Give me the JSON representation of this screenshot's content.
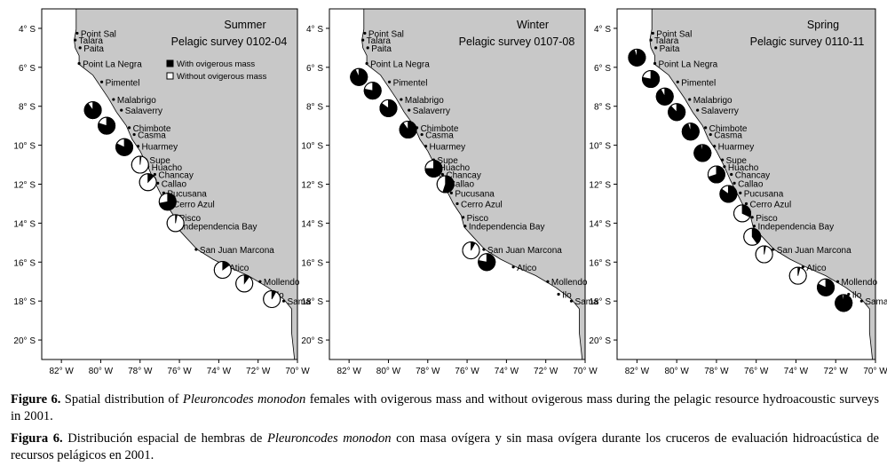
{
  "colors": {
    "land": "#c8c8c8",
    "sea": "#ffffff",
    "with_mass": "#000000",
    "without_mass": "#ffffff"
  },
  "legend": {
    "with_label": "With ovigerous mass",
    "without_label": "Without ovigerous mass"
  },
  "axes": {
    "lat_ticks": [
      "4° S",
      "6° S",
      "8° S",
      "10° S",
      "12° S",
      "14° S",
      "16° S",
      "18° S",
      "20° S"
    ],
    "lon_ticks": [
      "82° W",
      "80° W",
      "78° W",
      "76° W",
      "74° W",
      "72° W",
      "70° W"
    ]
  },
  "places": [
    "Point Sal",
    "Talara",
    "Paita",
    "Point La Negra",
    "Pimentel",
    "Malabrigo",
    "Salaverry",
    "Chimbote",
    "Casma",
    "Huarmey",
    "Supe",
    "Huacho",
    "Chancay",
    "Callao",
    "Pucusana",
    "Cerro Azul",
    "Pisco",
    "Independencia Bay",
    "San Juan Marcona",
    "Atico",
    "Mollendo",
    "Ilo",
    "Sama"
  ],
  "panels": [
    {
      "season": "Summer",
      "survey": "Pelagic survey 0102-04",
      "show_legend": true,
      "pies": [
        {
          "lon": -80.4,
          "lat": 8.2,
          "with_mass": 0.9
        },
        {
          "lon": -79.7,
          "lat": 9.0,
          "with_mass": 0.8
        },
        {
          "lon": -78.8,
          "lat": 10.1,
          "with_mass": 0.82
        },
        {
          "lon": -78.0,
          "lat": 11.0,
          "with_mass": 0.02
        },
        {
          "lon": -77.6,
          "lat": 11.9,
          "with_mass": 0.12
        },
        {
          "lon": -76.6,
          "lat": 12.9,
          "with_mass": 0.72
        },
        {
          "lon": -76.2,
          "lat": 14.0,
          "with_mass": 0.03
        },
        {
          "lon": -73.8,
          "lat": 16.4,
          "with_mass": 0.15
        },
        {
          "lon": -72.7,
          "lat": 17.1,
          "with_mass": 0.1
        },
        {
          "lon": -71.3,
          "lat": 17.9,
          "with_mass": 0.08
        }
      ]
    },
    {
      "season": "Winter",
      "survey": "Pelagic survey 0107-08",
      "show_legend": false,
      "pies": [
        {
          "lon": -81.5,
          "lat": 6.5,
          "with_mass": 0.93
        },
        {
          "lon": -80.8,
          "lat": 7.2,
          "with_mass": 0.78
        },
        {
          "lon": -80.0,
          "lat": 8.1,
          "with_mass": 0.85
        },
        {
          "lon": -79.0,
          "lat": 9.2,
          "with_mass": 0.9
        },
        {
          "lon": -77.7,
          "lat": 11.2,
          "with_mass": 0.75
        },
        {
          "lon": -77.1,
          "lat": 12.0,
          "with_mass": 0.55
        },
        {
          "lon": -75.8,
          "lat": 15.4,
          "with_mass": 0.08
        },
        {
          "lon": -75.0,
          "lat": 16.0,
          "with_mass": 0.78
        }
      ]
    },
    {
      "season": "Spring",
      "survey": "Pelagic survey 0110-11",
      "show_legend": false,
      "pies": [
        {
          "lon": -82.0,
          "lat": 5.5,
          "with_mass": 0.95
        },
        {
          "lon": -81.3,
          "lat": 6.6,
          "with_mass": 0.78
        },
        {
          "lon": -80.6,
          "lat": 7.5,
          "with_mass": 0.92
        },
        {
          "lon": -80.0,
          "lat": 8.3,
          "with_mass": 0.88
        },
        {
          "lon": -79.3,
          "lat": 9.3,
          "with_mass": 0.95
        },
        {
          "lon": -78.7,
          "lat": 10.4,
          "with_mass": 0.97
        },
        {
          "lon": -78.0,
          "lat": 11.5,
          "with_mass": 0.7
        },
        {
          "lon": -77.4,
          "lat": 12.5,
          "with_mass": 0.85
        },
        {
          "lon": -76.7,
          "lat": 13.5,
          "with_mass": 0.32
        },
        {
          "lon": -76.2,
          "lat": 14.7,
          "with_mass": 0.4
        },
        {
          "lon": -75.6,
          "lat": 15.6,
          "with_mass": 0.03
        },
        {
          "lon": -73.9,
          "lat": 16.7,
          "with_mass": 0.04
        },
        {
          "lon": -72.5,
          "lat": 17.3,
          "with_mass": 0.82
        },
        {
          "lon": -71.6,
          "lat": 18.1,
          "with_mass": 0.97
        }
      ]
    }
  ],
  "caption": {
    "en_label": "Figure 6.",
    "en_text_1": " Spatial distribution of ",
    "en_species": "Pleuroncodes monodon",
    "en_text_2": " females with ovigerous mass and without ovigerous mass during the pelagic resource hydroacoustic surveys in 2001.",
    "es_label": "Figura 6.",
    "es_text_1": " Distribución espacial de hembras de ",
    "es_species": "Pleuroncodes monodon",
    "es_text_2": " con masa ovígera y sin masa ovígera durante los cruceros de evaluación hidroacústica de recursos pelágicos en 2001."
  }
}
